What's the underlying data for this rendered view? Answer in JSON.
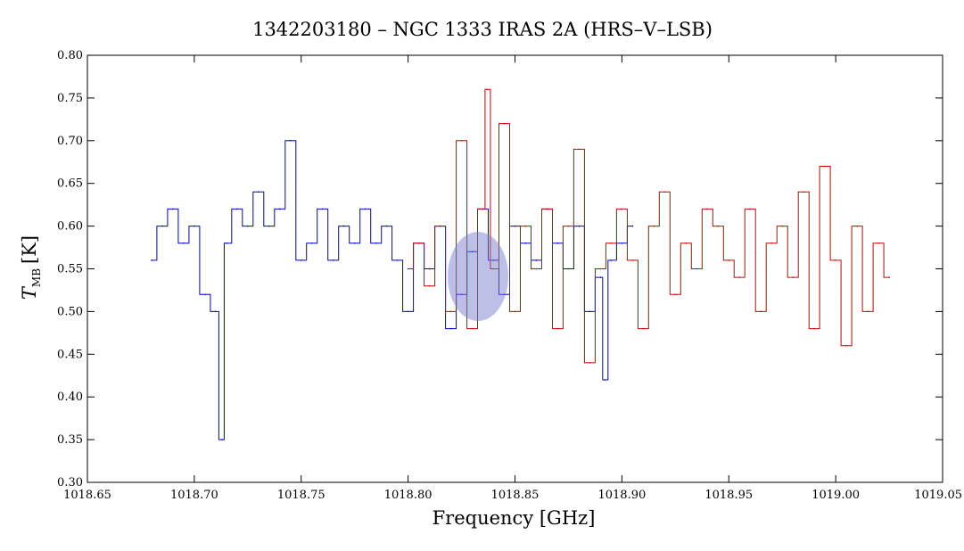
{
  "chart_data": {
    "type": "line",
    "title": "1342203180 – NGC 1333 IRAS 2A (HRS–V–LSB)",
    "xlabel": "Frequency [GHz]",
    "ylabel_main": "T",
    "ylabel_sub": "MB",
    "ylabel_unit": "[K]",
    "xlim": [
      1018.65,
      1019.05
    ],
    "ylim": [
      0.3,
      0.8
    ],
    "x_ticks": [
      "1018.65",
      "1018.70",
      "1018.75",
      "1018.80",
      "1018.85",
      "1018.90",
      "1018.95",
      "1019.00",
      "1019.05"
    ],
    "y_ticks": [
      "0.30",
      "0.35",
      "0.40",
      "0.45",
      "0.50",
      "0.55",
      "0.60",
      "0.65",
      "0.70",
      "0.75",
      "0.80"
    ],
    "grid": false,
    "series": [
      {
        "color": "#0000cc",
        "x": [
          1018.68,
          1018.685,
          1018.69,
          1018.695,
          1018.7,
          1018.705,
          1018.71,
          1018.713,
          1018.715,
          1018.72,
          1018.725,
          1018.73,
          1018.735,
          1018.74,
          1018.745,
          1018.75,
          1018.755,
          1018.76,
          1018.765,
          1018.77,
          1018.775,
          1018.78,
          1018.785,
          1018.79,
          1018.795,
          1018.8,
          1018.805,
          1018.81,
          1018.815,
          1018.82,
          1018.825,
          1018.83,
          1018.835,
          1018.84,
          1018.845,
          1018.85,
          1018.855,
          1018.86,
          1018.865,
          1018.87,
          1018.875,
          1018.88,
          1018.885,
          1018.89,
          1018.892,
          1018.895,
          1018.9,
          1018.905
        ],
        "y": [
          0.56,
          0.6,
          0.62,
          0.58,
          0.6,
          0.52,
          0.5,
          0.35,
          0.58,
          0.62,
          0.6,
          0.64,
          0.6,
          0.62,
          0.7,
          0.56,
          0.58,
          0.62,
          0.56,
          0.6,
          0.58,
          0.62,
          0.58,
          0.6,
          0.56,
          0.5,
          0.58,
          0.55,
          0.6,
          0.48,
          0.52,
          0.57,
          0.62,
          0.56,
          0.52,
          0.6,
          0.58,
          0.56,
          0.62,
          0.58,
          0.55,
          0.6,
          0.5,
          0.54,
          0.42,
          0.56,
          0.58,
          0.6
        ]
      },
      {
        "color": "#cc0000",
        "x": [
          1018.8,
          1018.805,
          1018.81,
          1018.815,
          1018.82,
          1018.825,
          1018.83,
          1018.835,
          1018.837,
          1018.84,
          1018.845,
          1018.85,
          1018.855,
          1018.86,
          1018.865,
          1018.87,
          1018.875,
          1018.88,
          1018.885,
          1018.89,
          1018.895,
          1018.9,
          1018.905,
          1018.91,
          1018.915,
          1018.92,
          1018.925,
          1018.93,
          1018.935,
          1018.94,
          1018.945,
          1018.95,
          1018.955,
          1018.96,
          1018.965,
          1018.97,
          1018.975,
          1018.98,
          1018.985,
          1018.99,
          1018.995,
          1019.0,
          1019.005,
          1019.01,
          1019.015,
          1019.02,
          1019.025
        ],
        "y": [
          0.55,
          0.58,
          0.53,
          0.6,
          0.5,
          0.7,
          0.48,
          0.62,
          0.76,
          0.55,
          0.72,
          0.5,
          0.6,
          0.55,
          0.62,
          0.48,
          0.6,
          0.69,
          0.44,
          0.55,
          0.58,
          0.62,
          0.56,
          0.48,
          0.6,
          0.64,
          0.52,
          0.58,
          0.55,
          0.62,
          0.6,
          0.56,
          0.54,
          0.62,
          0.5,
          0.58,
          0.6,
          0.54,
          0.64,
          0.48,
          0.67,
          0.56,
          0.46,
          0.6,
          0.5,
          0.58,
          0.54
        ]
      }
    ]
  }
}
